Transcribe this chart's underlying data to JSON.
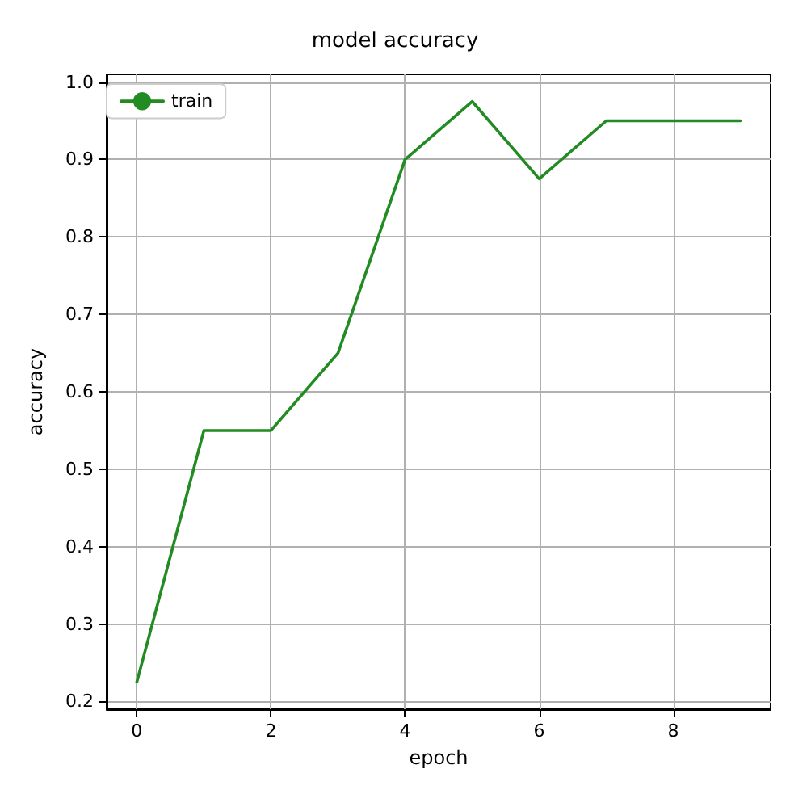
{
  "chart_data": {
    "type": "line",
    "title": "model accuracy",
    "xlabel": "epoch",
    "ylabel": "accuracy",
    "x": [
      0,
      1,
      2,
      3,
      4,
      5,
      6,
      7,
      8,
      9
    ],
    "series": [
      {
        "name": "train",
        "color": "#228b22",
        "values": [
          0.225,
          0.55,
          0.55,
          0.65,
          0.9,
          0.975,
          0.875,
          0.95,
          0.95,
          0.95
        ]
      }
    ],
    "xlim": [
      -0.45,
      9.45
    ],
    "xticks": [
      0,
      2,
      4,
      6,
      8
    ],
    "ylim": [
      0.19,
      1.01
    ],
    "yticks": [
      0.2,
      0.3,
      0.4,
      0.5,
      0.6,
      0.7,
      0.8,
      0.9,
      {
        "value": 1,
        "label": "1.0"
      }
    ],
    "grid": true,
    "legend": "top left",
    "marker": "none",
    "line_style": "solid"
  }
}
